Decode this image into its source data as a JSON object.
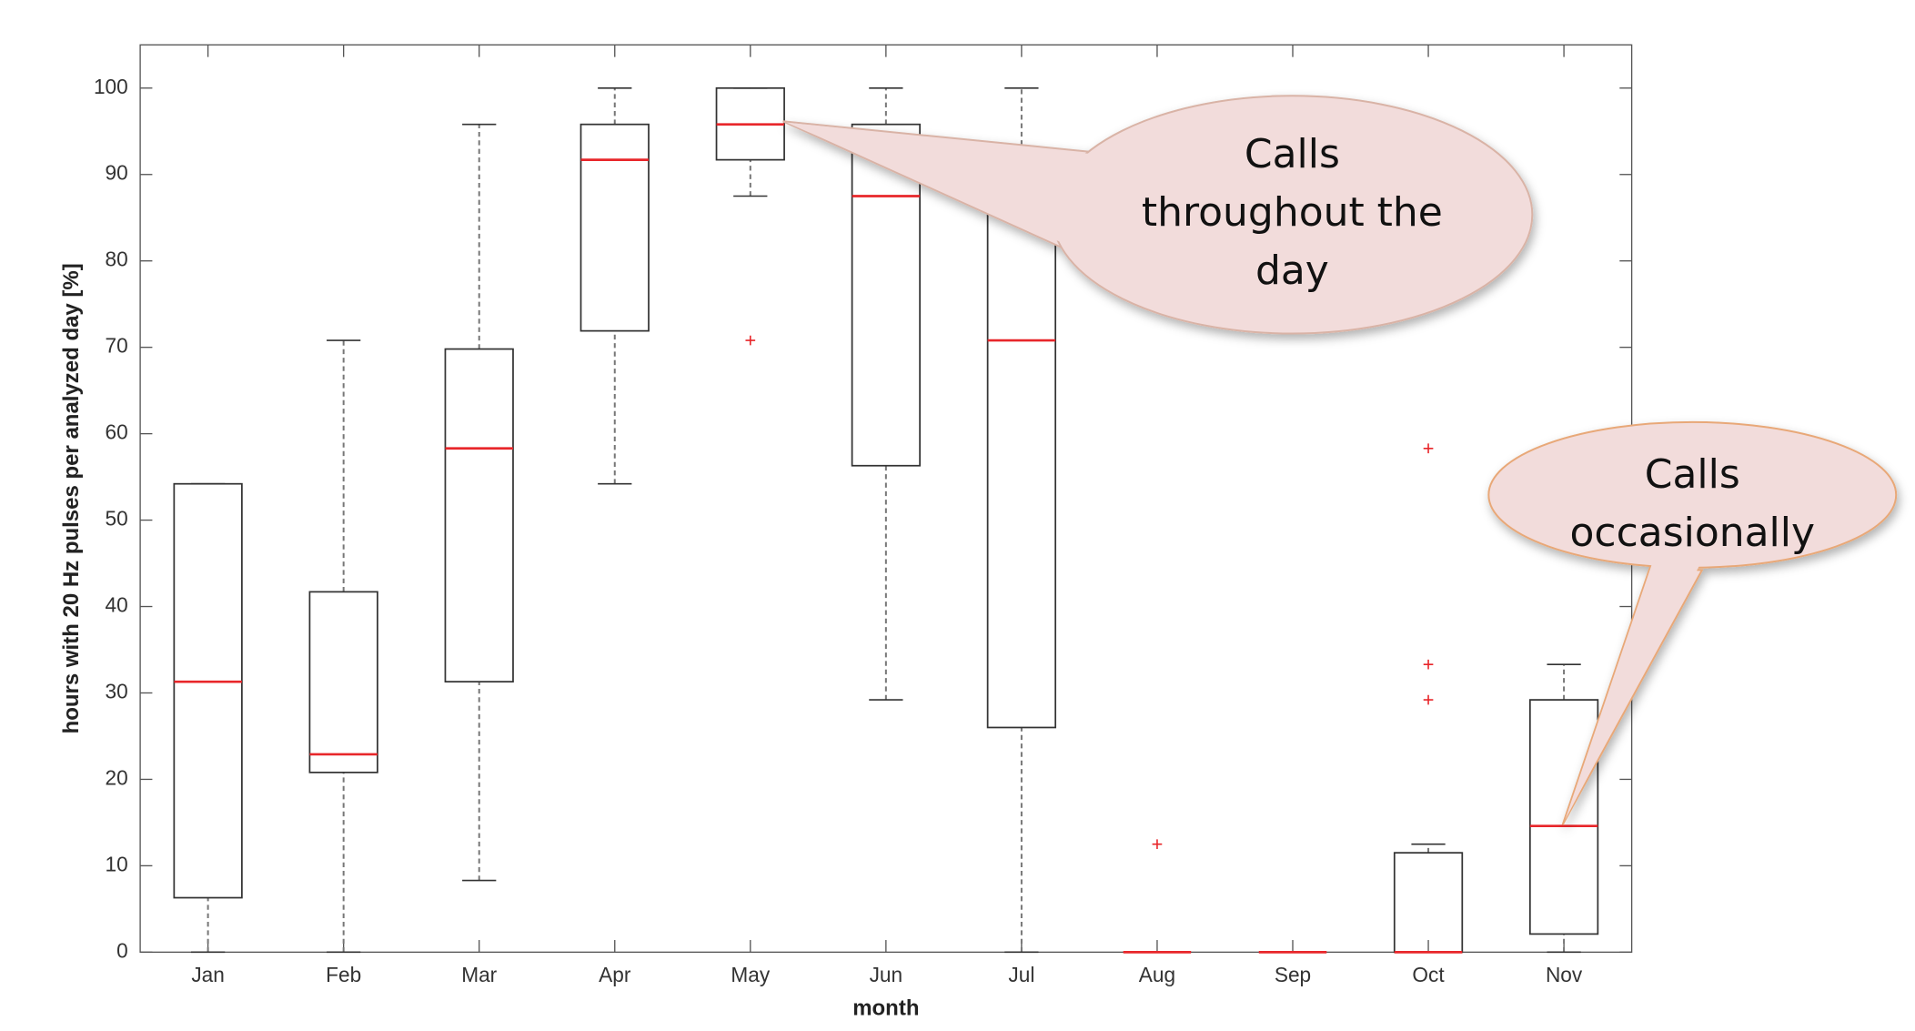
{
  "chart_data": {
    "type": "box",
    "categories": [
      "Jan",
      "Feb",
      "Mar",
      "Apr",
      "May",
      "Jun",
      "Jul",
      "Aug",
      "Sep",
      "Oct",
      "Nov"
    ],
    "whisker_low": [
      0,
      0,
      8.3,
      54.2,
      87.5,
      29.2,
      0,
      0,
      0,
      0,
      0
    ],
    "q1": [
      6.3,
      20.8,
      31.3,
      71.9,
      91.7,
      56.3,
      26.0,
      0,
      0,
      0,
      2.1
    ],
    "median": [
      31.3,
      22.9,
      58.3,
      91.7,
      95.8,
      87.5,
      70.8,
      0,
      0,
      0,
      14.6
    ],
    "q3": [
      54.2,
      41.7,
      69.8,
      95.8,
      100,
      95.8,
      87.5,
      0,
      0,
      11.5,
      29.2
    ],
    "whisker_high": [
      54.2,
      70.8,
      95.8,
      100,
      100,
      100,
      100,
      0,
      0,
      12.5,
      33.3
    ],
    "outliers": [
      [],
      [],
      [],
      [],
      [
        70.8
      ],
      [],
      [],
      [
        12.5
      ],
      [],
      [
        58.3,
        33.3,
        29.2
      ],
      []
    ],
    "box_color": "#333333",
    "median_color": "#e8262a",
    "whisker_color": "#777777",
    "outlier_color": "#e8262a",
    "ylim": [
      0,
      105
    ],
    "yticks": [
      0,
      10,
      20,
      30,
      40,
      50,
      60,
      70,
      80,
      90,
      100
    ],
    "x_label": "month",
    "y_label": "hours with 20 Hz pulses per analyzed day [%]",
    "annotations": [
      {
        "lines": [
          "Calls",
          "throughout the",
          "day"
        ]
      },
      {
        "lines": [
          "Calls",
          "occasionally"
        ]
      }
    ]
  }
}
